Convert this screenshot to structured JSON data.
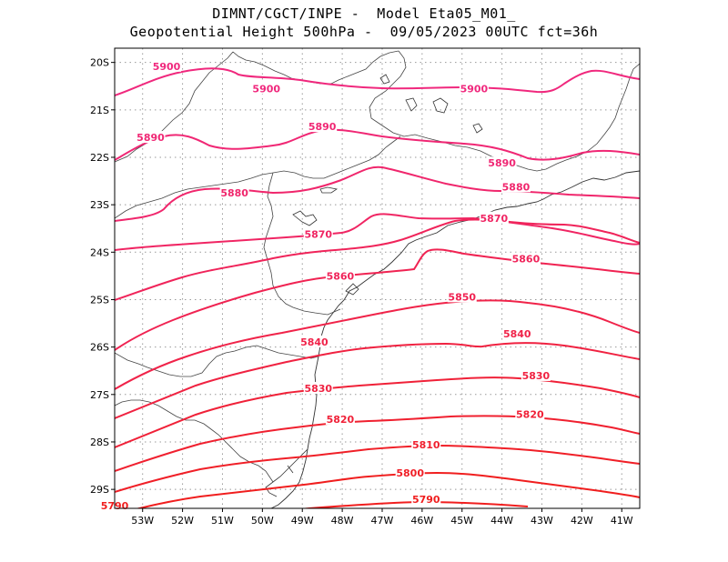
{
  "title": {
    "line1": "DIMNT/CGCT/INPE -  Model Eta05_M01_",
    "line2": "Geopotential Height 500hPa -  09/05/2023 00UTC fct=36h"
  },
  "axes": {
    "lon_labels": [
      "53W",
      "52W",
      "51W",
      "50W",
      "49W",
      "48W",
      "47W",
      "46W",
      "45W",
      "44W",
      "43W",
      "42W",
      "41W"
    ],
    "lat_labels": [
      "20S",
      "21S",
      "22S",
      "23S",
      "24S",
      "25S",
      "26S",
      "27S",
      "28S",
      "29S"
    ]
  },
  "colors": {
    "high": "#f0287d",
    "low": "#f01e1e",
    "coast": "#333333",
    "grid": "#999999"
  },
  "contours": [
    {
      "value": 5900,
      "label": "5900",
      "labels_at": [
        [
          -52.4,
          -20.08
        ],
        [
          -49.9,
          -20.55
        ],
        [
          -44.7,
          -20.55
        ]
      ]
    },
    {
      "value": 5890,
      "label": "5890",
      "labels_at": [
        [
          -52.8,
          -21.58
        ],
        [
          -48.5,
          -21.35
        ],
        [
          -44.0,
          -22.12
        ]
      ]
    },
    {
      "value": 5880,
      "label": "5880",
      "labels_at": [
        [
          -50.7,
          -22.75
        ],
        [
          -43.65,
          -22.62
        ]
      ]
    },
    {
      "value": 5870,
      "label": "5870",
      "labels_at": [
        [
          -48.6,
          -23.62
        ],
        [
          -44.2,
          -23.28
        ]
      ]
    },
    {
      "value": 5860,
      "label": "5860",
      "labels_at": [
        [
          -48.05,
          -24.5
        ],
        [
          -43.4,
          -24.14
        ]
      ]
    },
    {
      "value": 5850,
      "label": "5850",
      "labels_at": [
        [
          -45.0,
          -24.94
        ]
      ]
    },
    {
      "value": 5840,
      "label": "5840",
      "labels_at": [
        [
          -48.7,
          -25.89
        ],
        [
          -43.62,
          -25.72
        ]
      ]
    },
    {
      "value": 5830,
      "label": "5830",
      "labels_at": [
        [
          -48.6,
          -26.87
        ],
        [
          -43.15,
          -26.6
        ]
      ]
    },
    {
      "value": 5820,
      "label": "5820",
      "labels_at": [
        [
          -48.05,
          -27.52
        ],
        [
          -43.3,
          -27.42
        ]
      ]
    },
    {
      "value": 5810,
      "label": "5810",
      "labels_at": [
        [
          -45.9,
          -28.06
        ]
      ]
    },
    {
      "value": 5800,
      "label": "5800",
      "labels_at": [
        [
          -46.3,
          -28.65
        ]
      ]
    },
    {
      "value": 5790,
      "label": "5790",
      "labels_at": [
        [
          -53.7,
          -29.34
        ],
        [
          -45.9,
          -29.21
        ]
      ]
    }
  ]
}
